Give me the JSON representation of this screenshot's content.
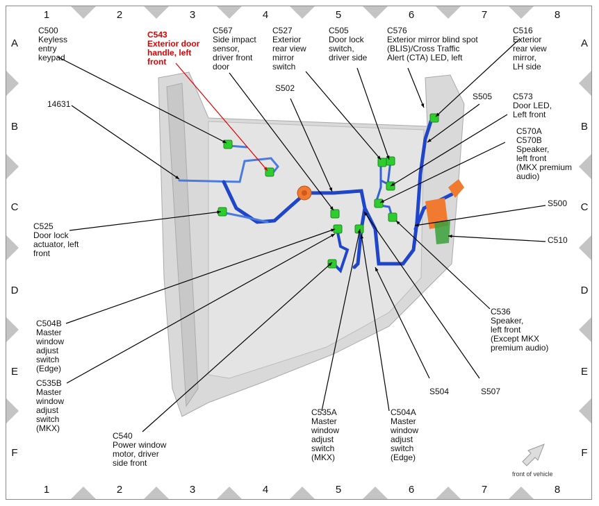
{
  "grid": {
    "columns": [
      "1",
      "2",
      "3",
      "4",
      "5",
      "6",
      "7",
      "8"
    ],
    "rows": [
      "A",
      "B",
      "C",
      "D",
      "E",
      "F"
    ]
  },
  "colors": {
    "highlight": "#e00000",
    "wire": "#1f45c8",
    "connector": "#2ecc2e",
    "grommet": "#f07a30",
    "door_panel": "#d9d9d9"
  },
  "callouts": [
    {
      "id": "C500",
      "lines": [
        "C500",
        "Keyless",
        "entry",
        "keypad"
      ]
    },
    {
      "id": "C543",
      "lines": [
        "C543",
        "Exterior door",
        "handle, left",
        "front"
      ],
      "highlighted": true
    },
    {
      "id": "C567",
      "lines": [
        "C567",
        "Side impact",
        "sensor,",
        "driver front",
        "door"
      ]
    },
    {
      "id": "C527",
      "lines": [
        "C527",
        "Exterior",
        "rear view",
        "mirror",
        "switch"
      ]
    },
    {
      "id": "C505",
      "lines": [
        "C505",
        "Door lock",
        "switch,",
        "driver side"
      ]
    },
    {
      "id": "C576",
      "lines": [
        "C576",
        "Exterior mirror blind spot",
        "(BLIS)/Cross Traffic",
        "Alert (CTA) LED, left"
      ]
    },
    {
      "id": "C516",
      "lines": [
        "C516",
        "Exterior",
        "rear view",
        "mirror,",
        "LH side"
      ]
    },
    {
      "id": "14631",
      "lines": [
        "14631"
      ]
    },
    {
      "id": "S502",
      "lines": [
        "S502"
      ]
    },
    {
      "id": "S505",
      "lines": [
        "S505"
      ]
    },
    {
      "id": "C573",
      "lines": [
        "C573",
        "Door LED,",
        "Left front"
      ]
    },
    {
      "id": "C570",
      "lines": [
        "C570A",
        "C570B",
        "Speaker,",
        "left front",
        "(MKX premium",
        "audio)"
      ]
    },
    {
      "id": "S500",
      "lines": [
        "S500"
      ]
    },
    {
      "id": "C510",
      "lines": [
        "C510"
      ]
    },
    {
      "id": "C525",
      "lines": [
        "C525",
        "Door lock",
        "actuator, left",
        "front"
      ]
    },
    {
      "id": "C536",
      "lines": [
        "C536",
        "Speaker,",
        "left front",
        "(Except MKX",
        "premium audio)"
      ]
    },
    {
      "id": "C504B",
      "lines": [
        "C504B",
        "Master",
        "window",
        "adjust",
        "switch",
        "(Edge)"
      ]
    },
    {
      "id": "C535B",
      "lines": [
        "C535B",
        "Master",
        "window",
        "adjust",
        "switch",
        "(MKX)"
      ]
    },
    {
      "id": "C540",
      "lines": [
        "C540",
        "Power window",
        "motor, driver",
        "side front"
      ]
    },
    {
      "id": "S504",
      "lines": [
        "S504"
      ]
    },
    {
      "id": "S507",
      "lines": [
        "S507"
      ]
    },
    {
      "id": "C535A",
      "lines": [
        "C535A",
        "Master",
        "window",
        "adjust",
        "switch",
        "(MKX)"
      ]
    },
    {
      "id": "C504A",
      "lines": [
        "C504A",
        "Master",
        "window",
        "adjust",
        "switch",
        "(Edge)"
      ]
    }
  ],
  "orientation": {
    "label": "front of vehicle",
    "icon": "arrow-up-right-icon"
  }
}
